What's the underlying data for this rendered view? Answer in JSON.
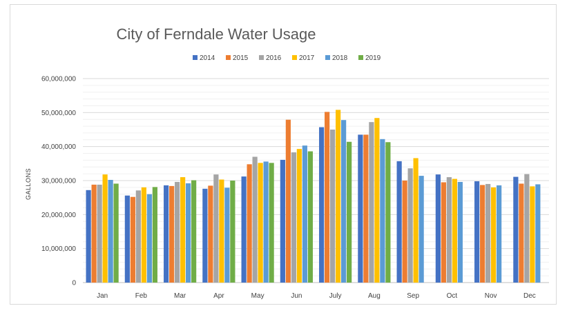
{
  "chart_data": {
    "type": "bar",
    "title": "City of Ferndale Water Usage",
    "ylabel": "GALLONS",
    "xlabel": "",
    "ylim": [
      0,
      60000000
    ],
    "yticks": [
      0,
      10000000,
      20000000,
      30000000,
      40000000,
      50000000,
      60000000
    ],
    "ytick_labels": [
      "0",
      "10,000,000",
      "20,000,000",
      "30,000,000",
      "40,000,000",
      "50,000,000",
      "60,000,000"
    ],
    "grid": true,
    "legend_position": "top",
    "categories": [
      "Jan",
      "Feb",
      "Mar",
      "Apr",
      "May",
      "Jun",
      "July",
      "Aug",
      "Sep",
      "Oct",
      "Nov",
      "Dec"
    ],
    "series": [
      {
        "name": "2014",
        "color": "#4472C4",
        "values": [
          27200000,
          25600000,
          28600000,
          27600000,
          31200000,
          36100000,
          45700000,
          43500000,
          35700000,
          31800000,
          29800000,
          31100000
        ]
      },
      {
        "name": "2015",
        "color": "#ED7D31",
        "values": [
          28800000,
          25200000,
          28400000,
          28500000,
          34800000,
          47900000,
          50200000,
          43500000,
          30000000,
          29500000,
          28700000,
          29100000
        ]
      },
      {
        "name": "2016",
        "color": "#A5A5A5",
        "values": [
          28800000,
          27100000,
          29600000,
          31800000,
          37000000,
          38300000,
          45000000,
          47200000,
          33600000,
          31000000,
          29000000,
          31900000
        ]
      },
      {
        "name": "2017",
        "color": "#FFC000",
        "values": [
          31800000,
          28000000,
          31000000,
          30300000,
          35200000,
          39300000,
          50800000,
          48400000,
          36600000,
          30500000,
          28000000,
          28300000
        ]
      },
      {
        "name": "2018",
        "color": "#5B9BD5",
        "values": [
          30200000,
          26000000,
          29200000,
          27900000,
          35600000,
          40300000,
          47800000,
          42200000,
          31400000,
          29600000,
          28600000,
          28900000
        ]
      },
      {
        "name": "2019",
        "color": "#70AD47",
        "values": [
          29100000,
          28100000,
          30100000,
          30000000,
          35200000,
          38600000,
          41400000,
          41300000,
          null,
          null,
          null,
          null
        ]
      }
    ]
  }
}
